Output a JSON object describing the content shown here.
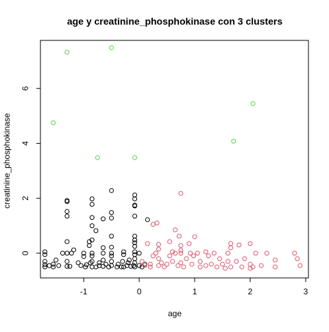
{
  "chart_data": {
    "type": "scatter",
    "title": "age  y  creatinine_phosphokinase con  3  clusters",
    "xlabel": "age",
    "ylabel": "creatinine_phosphokinase",
    "xlim": [
      -1.78,
      3.05
    ],
    "ylim": [
      -0.9,
      7.75
    ],
    "xticks": [
      -1,
      0,
      1,
      2,
      3
    ],
    "yticks": [
      0,
      2,
      4,
      6
    ],
    "grid": false,
    "legend": "none",
    "marker": "open-circle",
    "series": [
      {
        "color": "#000000",
        "points": [
          [
            -1.7,
            -0.5
          ],
          [
            -1.7,
            -0.42
          ],
          [
            -1.7,
            -0.3
          ],
          [
            -1.7,
            -0.05
          ],
          [
            -1.7,
            0.05
          ],
          [
            -1.62,
            -0.45
          ],
          [
            -1.55,
            -0.5
          ],
          [
            -1.55,
            -0.4
          ],
          [
            -1.5,
            -0.25
          ],
          [
            -1.45,
            -0.45
          ],
          [
            -1.38,
            0.0
          ],
          [
            -1.3,
            -0.48
          ],
          [
            -1.3,
            -0.3
          ],
          [
            -1.3,
            0.0
          ],
          [
            -1.3,
            0.42
          ],
          [
            -1.3,
            1.35
          ],
          [
            -1.3,
            1.52
          ],
          [
            -1.3,
            1.88
          ],
          [
            -1.3,
            1.92
          ],
          [
            -1.25,
            -0.48
          ],
          [
            -1.22,
            0.0
          ],
          [
            -1.18,
            0.12
          ],
          [
            -1.1,
            -0.35
          ],
          [
            -1.05,
            -0.45
          ],
          [
            -1.0,
            -0.12
          ],
          [
            -1.0,
            0.0
          ],
          [
            -0.97,
            -0.5
          ],
          [
            -0.95,
            -0.42
          ],
          [
            -0.9,
            0.28
          ],
          [
            -0.9,
            0.42
          ],
          [
            -0.88,
            -0.35
          ],
          [
            -0.85,
            -0.5
          ],
          [
            -0.85,
            -0.3
          ],
          [
            -0.85,
            -0.1
          ],
          [
            -0.85,
            0.0
          ],
          [
            -0.85,
            0.48
          ],
          [
            -0.85,
            1.0
          ],
          [
            -0.85,
            1.3
          ],
          [
            -0.85,
            1.78
          ],
          [
            -0.85,
            1.98
          ],
          [
            -0.78,
            -0.5
          ],
          [
            -0.78,
            0.82
          ],
          [
            -0.72,
            -0.45
          ],
          [
            -0.72,
            -0.35
          ],
          [
            -0.65,
            -0.48
          ],
          [
            -0.65,
            -0.25
          ],
          [
            -0.65,
            0.0
          ],
          [
            -0.65,
            0.2
          ],
          [
            -0.65,
            1.25
          ],
          [
            -0.6,
            -0.4
          ],
          [
            -0.55,
            -0.5
          ],
          [
            -0.5,
            -0.45
          ],
          [
            -0.5,
            -0.3
          ],
          [
            -0.5,
            -0.1
          ],
          [
            -0.5,
            0.0
          ],
          [
            -0.5,
            0.22
          ],
          [
            -0.5,
            0.62
          ],
          [
            -0.5,
            1.28
          ],
          [
            -0.5,
            1.48
          ],
          [
            -0.5,
            2.28
          ],
          [
            -0.4,
            -0.5
          ],
          [
            -0.38,
            -0.4
          ],
          [
            -0.32,
            -0.5
          ],
          [
            -0.3,
            -0.3
          ],
          [
            -0.28,
            -0.5
          ],
          [
            -0.28,
            -0.05
          ],
          [
            -0.28,
            0.05
          ],
          [
            -0.22,
            -0.45
          ],
          [
            -0.2,
            -0.35
          ],
          [
            -0.18,
            -0.25
          ],
          [
            -0.15,
            -0.48
          ],
          [
            -0.1,
            -0.45
          ],
          [
            -0.08,
            -0.5
          ],
          [
            -0.08,
            -0.35
          ],
          [
            -0.08,
            -0.2
          ],
          [
            -0.08,
            -0.05
          ],
          [
            -0.08,
            0.05
          ],
          [
            -0.08,
            0.25
          ],
          [
            -0.08,
            0.38
          ],
          [
            -0.08,
            0.48
          ],
          [
            -0.08,
            0.62
          ],
          [
            -0.08,
            1.35
          ],
          [
            -0.08,
            1.72
          ],
          [
            -0.08,
            1.75
          ],
          [
            -0.08,
            1.98
          ],
          [
            -0.08,
            2.12
          ],
          [
            0.0,
            -0.45
          ],
          [
            0.0,
            0.0
          ],
          [
            0.05,
            -0.5
          ],
          [
            0.1,
            -0.4
          ],
          [
            0.15,
            1.22
          ]
        ]
      },
      {
        "color": "#df536b",
        "points": [
          [
            0.05,
            -0.3
          ],
          [
            0.1,
            -0.45
          ],
          [
            0.15,
            0.35
          ],
          [
            0.2,
            -0.5
          ],
          [
            0.2,
            -0.4
          ],
          [
            0.25,
            -0.1
          ],
          [
            0.25,
            1.05
          ],
          [
            0.3,
            0.0
          ],
          [
            0.32,
            1.1
          ],
          [
            0.35,
            -0.45
          ],
          [
            0.35,
            -0.2
          ],
          [
            0.35,
            0.15
          ],
          [
            0.35,
            0.32
          ],
          [
            0.4,
            -0.35
          ],
          [
            0.45,
            -0.5
          ],
          [
            0.5,
            -0.4
          ],
          [
            0.55,
            -0.1
          ],
          [
            0.55,
            0.42
          ],
          [
            0.6,
            -0.3
          ],
          [
            0.6,
            0.05
          ],
          [
            0.65,
            0.0
          ],
          [
            0.65,
            0.85
          ],
          [
            0.7,
            -0.45
          ],
          [
            0.72,
            0.62
          ],
          [
            0.75,
            -0.35
          ],
          [
            0.75,
            0.0
          ],
          [
            0.75,
            0.1
          ],
          [
            0.75,
            0.28
          ],
          [
            0.75,
            2.18
          ],
          [
            0.8,
            -0.5
          ],
          [
            0.85,
            -0.2
          ],
          [
            0.9,
            0.35
          ],
          [
            0.92,
            0.0
          ],
          [
            0.95,
            -0.4
          ],
          [
            0.98,
            -0.1
          ],
          [
            1.0,
            0.6
          ],
          [
            1.05,
            0.0
          ],
          [
            1.1,
            -0.3
          ],
          [
            1.1,
            -0.5
          ],
          [
            1.2,
            -0.45
          ],
          [
            1.2,
            0.05
          ],
          [
            1.25,
            -0.1
          ],
          [
            1.3,
            -0.4
          ],
          [
            1.35,
            0.0
          ],
          [
            1.4,
            -0.5
          ],
          [
            1.45,
            -0.2
          ],
          [
            1.5,
            -0.4
          ],
          [
            1.55,
            -0.55
          ],
          [
            1.6,
            -0.3
          ],
          [
            1.6,
            0.0
          ],
          [
            1.65,
            -0.5
          ],
          [
            1.65,
            0.2
          ],
          [
            1.65,
            0.35
          ],
          [
            1.75,
            -0.3
          ],
          [
            1.8,
            0.3
          ],
          [
            1.85,
            -0.5
          ],
          [
            1.9,
            -0.2
          ],
          [
            2.0,
            -0.55
          ],
          [
            2.0,
            -0.4
          ],
          [
            2.0,
            0.35
          ],
          [
            2.05,
            -0.5
          ],
          [
            2.1,
            0.0
          ],
          [
            2.2,
            -0.45
          ],
          [
            2.3,
            0.0
          ],
          [
            2.45,
            -0.5
          ],
          [
            2.45,
            -0.25
          ],
          [
            2.8,
            0.0
          ],
          [
            2.85,
            -0.2
          ],
          [
            2.9,
            -0.45
          ]
        ]
      },
      {
        "color": "#61d04f",
        "points": [
          [
            -1.55,
            4.75
          ],
          [
            -1.3,
            7.32
          ],
          [
            -0.75,
            3.48
          ],
          [
            -0.5,
            7.48
          ],
          [
            -0.08,
            3.48
          ],
          [
            1.7,
            4.08
          ],
          [
            2.05,
            5.45
          ]
        ]
      }
    ]
  }
}
